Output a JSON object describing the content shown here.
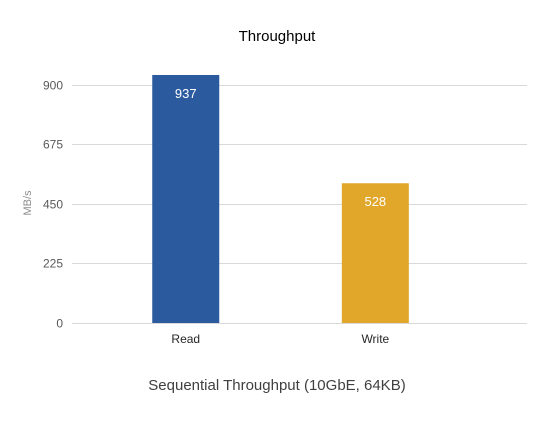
{
  "chart_data": {
    "type": "bar",
    "title": "Throughput",
    "subtitle": "Sequential Throughput (10GbE, 64KB)",
    "xlabel": "",
    "ylabel": "MB/s",
    "categories": [
      "Read",
      "Write"
    ],
    "values": [
      937,
      528
    ],
    "data_labels": [
      "937",
      "528"
    ],
    "colors": [
      "#2b5a9e",
      "#e0a72b"
    ],
    "ylim": [
      0,
      1012.5
    ],
    "yticks": [
      0,
      225,
      450,
      675,
      900
    ],
    "ytick_labels": [
      "0",
      "225",
      "450",
      "675",
      "900"
    ],
    "grid": true,
    "legend": "none"
  }
}
